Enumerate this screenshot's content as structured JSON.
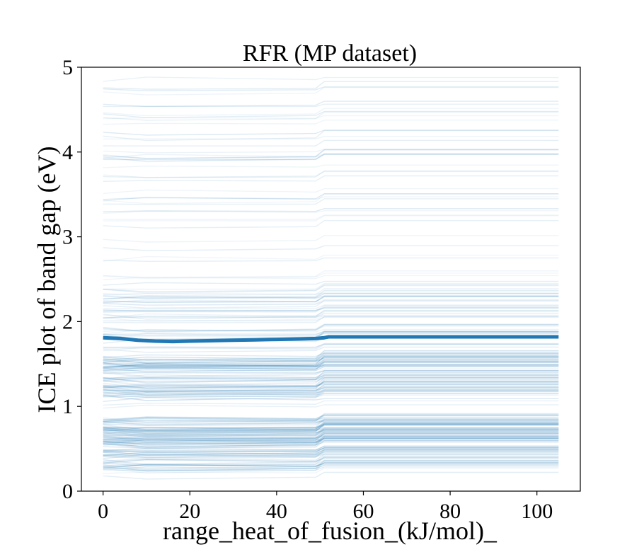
{
  "chart_data": {
    "type": "line",
    "title": "RFR (MP dataset)",
    "xlabel": "range_heat_of_fusion_(kJ/mol)_",
    "ylabel": "ICE plot of band gap (eV)",
    "xlim": [
      -5,
      110
    ],
    "ylim": [
      0,
      5
    ],
    "x_ticks": [
      0,
      20,
      40,
      60,
      80,
      100
    ],
    "x_tick_labels": [
      "0",
      "20",
      "40",
      "60",
      "80",
      "100"
    ],
    "y_ticks": [
      0,
      1,
      2,
      3,
      4,
      5
    ],
    "y_tick_labels": [
      "0",
      "1",
      "2",
      "3",
      "4",
      "5"
    ],
    "grid": false,
    "legend": "none",
    "colors": {
      "ice_lines": "#1f77b4",
      "average_line": "#1f77b4"
    },
    "series": [
      {
        "role": "average",
        "x": [
          0,
          4,
          8,
          12,
          16,
          20,
          25,
          30,
          35,
          40,
          45,
          49,
          51,
          52,
          60,
          70,
          80,
          90,
          100,
          105
        ],
        "y": [
          1.81,
          1.8,
          1.78,
          1.77,
          1.765,
          1.77,
          1.775,
          1.78,
          1.785,
          1.79,
          1.795,
          1.8,
          1.81,
          1.82,
          1.82,
          1.82,
          1.82,
          1.82,
          1.82,
          1.82
        ]
      },
      {
        "role": "individual_conditional_expectation",
        "x_range": [
          0,
          105
        ],
        "count": 300,
        "y_range": [
          0.15,
          4.95
        ]
      }
    ]
  }
}
